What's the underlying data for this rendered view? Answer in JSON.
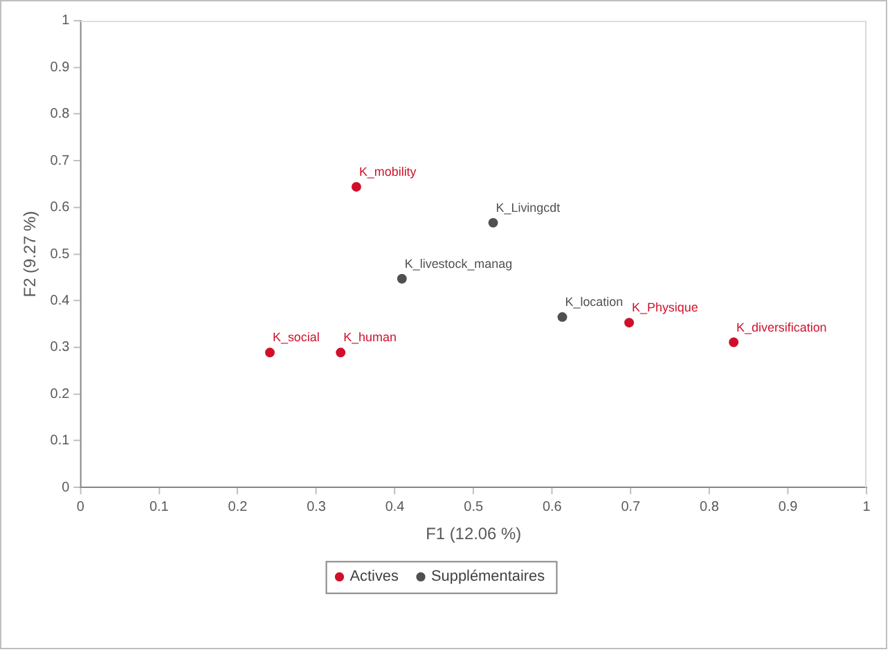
{
  "chart_data": {
    "type": "scatter",
    "xlabel": "F1 (12.06 %)",
    "ylabel": "F2 (9.27 %)",
    "xlim": [
      0,
      1
    ],
    "xticks": [
      0,
      0.1,
      0.2,
      0.3,
      0.4,
      0.5,
      0.6,
      0.7,
      0.8,
      0.9,
      1
    ],
    "ylim": [
      0,
      1
    ],
    "yticks": [
      0,
      0.1,
      0.2,
      0.3,
      0.4,
      0.5,
      0.6,
      0.7,
      0.8,
      0.9,
      1
    ],
    "grid": false,
    "legend": "bottom",
    "marker": "circle",
    "series": [
      {
        "name": "Actives",
        "color": "#d0102a",
        "x": [
          0.351,
          0.241,
          0.331,
          0.698,
          0.831
        ],
        "values": [
          0.644,
          0.289,
          0.289,
          0.353,
          0.311
        ]
      },
      {
        "name": "Supplémentaires",
        "color": "#505050",
        "x": [
          0.409,
          0.525,
          0.613
        ],
        "values": [
          0.447,
          0.567,
          0.365
        ]
      }
    ],
    "annotations": [
      {
        "text": "K_mobility",
        "x": 0.351,
        "y": 0.644
      },
      {
        "text": "K_social",
        "x": 0.241,
        "y": 0.289
      },
      {
        "text": "K_human",
        "x": 0.331,
        "y": 0.289
      },
      {
        "text": "K_Physique",
        "x": 0.698,
        "y": 0.353
      },
      {
        "text": "K_diversification",
        "x": 0.831,
        "y": 0.311
      },
      {
        "text": "K_livestock_manag",
        "x": 0.409,
        "y": 0.447
      },
      {
        "text": "K_Livingcdt",
        "x": 0.525,
        "y": 0.567
      },
      {
        "text": "K_location",
        "x": 0.613,
        "y": 0.365
      }
    ]
  }
}
